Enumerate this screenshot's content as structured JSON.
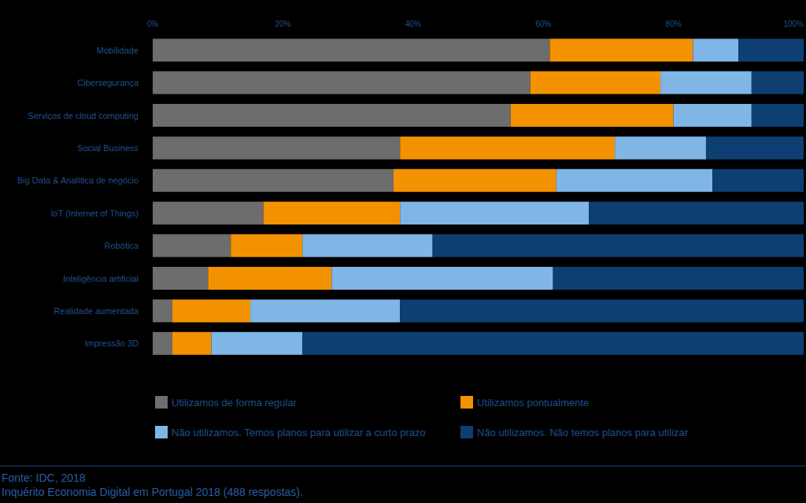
{
  "chart_data": {
    "type": "bar",
    "orientation": "horizontal",
    "stacked": true,
    "grid": false,
    "legend": "bottom",
    "categories": [
      "Mobilidade",
      "Cibersegurança",
      "Serviços de cloud computing",
      "Social Business",
      "Big Data & Analítica de negócio",
      "IoT (Internet of Things)",
      "Robótica",
      "Inteligência artificial",
      "Realidade aumentada",
      "Impressão 3D"
    ],
    "series": [
      {
        "name": "Utilizamos de forma regular",
        "color": "#6d6d6d",
        "values": [
          61,
          58,
          55,
          38,
          37,
          17,
          12,
          8.5,
          3,
          3
        ]
      },
      {
        "name": "Utilizamos pontualmente",
        "color": "#f39200",
        "values": [
          22,
          20,
          25,
          33,
          25,
          21,
          11,
          19,
          12,
          6
        ]
      },
      {
        "name": "Não utilizamos. Temos planos para utilizar a curto prazo",
        "color": "#7fb6e6",
        "values": [
          7,
          14,
          12,
          14,
          24,
          29,
          20,
          34,
          23,
          14
        ]
      },
      {
        "name": "Não utilizamos. Não temos planos para utilizar",
        "color": "#0e3f73",
        "values": [
          10,
          8,
          8,
          15,
          14,
          33,
          57,
          38.5,
          62,
          77
        ]
      }
    ],
    "xlim": [
      0,
      100
    ],
    "xticks": [
      {
        "value": 0,
        "label": "0%"
      },
      {
        "value": 20,
        "label": "20%"
      },
      {
        "value": 40,
        "label": "40%"
      },
      {
        "value": 60,
        "label": "60%"
      },
      {
        "value": 80,
        "label": "80%"
      },
      {
        "value": 100,
        "label": "100%"
      }
    ],
    "annotations": [
      "Fonte: IDC, 2018",
      "Inquérito Economia Digital em Portugal 2018 (488 respostas)."
    ]
  }
}
